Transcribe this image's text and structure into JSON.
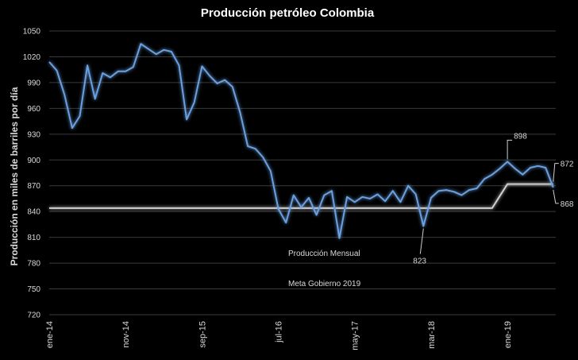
{
  "chart_data": {
    "type": "line",
    "title": "Producción petróleo Colombia",
    "xlabel": "",
    "ylabel": "Producción en miles de barriles por día",
    "ylim": [
      720,
      1050
    ],
    "yticks": [
      "1050",
      "1020",
      "990",
      "960",
      "930",
      "900",
      "870",
      "840",
      "810",
      "780",
      "750",
      "720"
    ],
    "xticks": [
      {
        "index": 0,
        "label": "ene-14"
      },
      {
        "index": 10,
        "label": "nov-14"
      },
      {
        "index": 20,
        "label": "sep-15"
      },
      {
        "index": 30,
        "label": "jul-16"
      },
      {
        "index": 40,
        "label": "may-17"
      },
      {
        "index": 50,
        "label": "mar-18"
      },
      {
        "index": 60,
        "label": "ene-19"
      }
    ],
    "grid": true,
    "legend_position": "center-bottom",
    "series": [
      {
        "name": "Producción Mensual",
        "color": "#6a9fe0",
        "values": [
          1014,
          1004,
          976,
          937,
          951,
          1010,
          971,
          1001,
          996,
          1003,
          1003,
          1008,
          1035,
          1029,
          1023,
          1028,
          1026,
          1010,
          947,
          967,
          1009,
          998,
          989,
          993,
          985,
          955,
          916,
          913,
          903,
          887,
          843,
          827,
          859,
          845,
          856,
          836,
          859,
          864,
          809,
          857,
          851,
          857,
          855,
          860,
          852,
          864,
          851,
          870,
          860,
          823,
          856,
          864,
          865,
          863,
          859,
          865,
          867,
          878,
          883,
          890,
          898,
          890,
          883,
          891,
          893,
          891,
          868
        ]
      },
      {
        "name": "Meta Gobierno 2019",
        "color": "#d0d0d0",
        "values": [
          844,
          844,
          844,
          844,
          844,
          844,
          844,
          844,
          844,
          844,
          844,
          844,
          844,
          844,
          844,
          844,
          844,
          844,
          844,
          844,
          844,
          844,
          844,
          844,
          844,
          844,
          844,
          844,
          844,
          844,
          844,
          844,
          844,
          844,
          844,
          844,
          844,
          844,
          844,
          844,
          844,
          844,
          844,
          844,
          844,
          844,
          844,
          844,
          844,
          844,
          844,
          844,
          844,
          844,
          844,
          844,
          844,
          844,
          844,
          858,
          872,
          872,
          872,
          872,
          872,
          872,
          872
        ]
      }
    ],
    "annotations": [
      {
        "index": 49,
        "series": 0,
        "label": "823"
      },
      {
        "index": 60,
        "series": 0,
        "label": "898"
      },
      {
        "index": 66,
        "series": 1,
        "label": "872"
      },
      {
        "index": 66,
        "series": 0,
        "label": "868"
      }
    ]
  }
}
